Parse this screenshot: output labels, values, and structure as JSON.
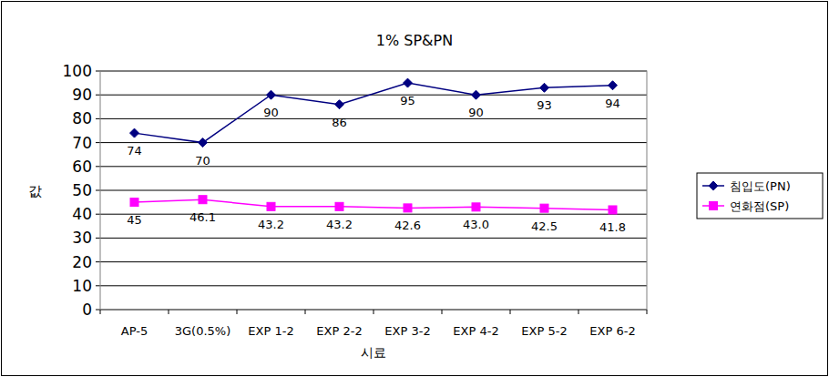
{
  "chart_data": {
    "type": "line",
    "title": "1% SP&PN",
    "x_label": "시료",
    "y_label": "값",
    "categories": [
      "AP-5",
      "3G(0.5%)",
      "EXP 1-2",
      "EXP 2-2",
      "EXP 3-2",
      "EXP 4-2",
      "EXP 5-2",
      "EXP 6-2"
    ],
    "series": [
      {
        "name": "침입도(PN)",
        "color": "#000080",
        "marker": "diamond",
        "line_style": "solid",
        "values": [
          74,
          70,
          90,
          86,
          95,
          90,
          93,
          94
        ]
      },
      {
        "name": "연화점(SP)",
        "color": "#ff00ff",
        "marker": "square",
        "line_style": "solid",
        "values": [
          45,
          46.1,
          43.2,
          43.2,
          42.6,
          43.0,
          42.5,
          41.8
        ],
        "value_labels": [
          "45",
          "46.1",
          "43.2",
          "43.2",
          "42.6",
          "43.0",
          "42.5",
          "41.8"
        ]
      }
    ],
    "ylim": [
      0,
      100
    ],
    "yticks": [
      0,
      10,
      20,
      30,
      40,
      50,
      60,
      70,
      80,
      90,
      100
    ],
    "grid": true,
    "legend": "right",
    "data_labels": true
  }
}
